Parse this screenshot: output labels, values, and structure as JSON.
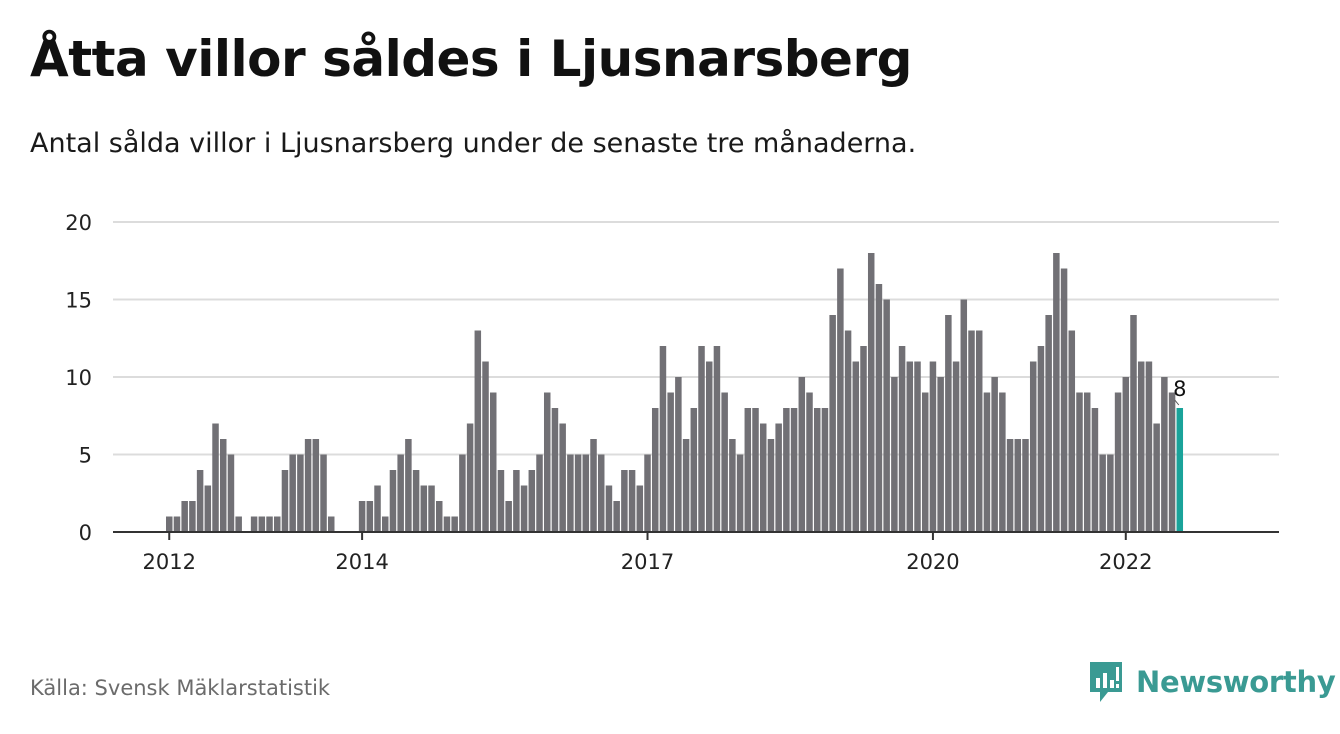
{
  "title": "Åtta villor såldes i Ljusnarsberg",
  "subtitle": "Antal sålda villor i Ljusnarsberg under de senaste tre månaderna.",
  "source": "Källa: Svensk Mäklarstatistik",
  "logo": {
    "text": "Newsworthy",
    "icon": "newsworthy-logo-icon"
  },
  "colors": {
    "bar": "#717075",
    "highlight": "#1aa39a",
    "grid": "#dcdcdc",
    "axis": "#333333",
    "brand": "#3a9a93"
  },
  "chart_data": {
    "type": "bar",
    "ylim": [
      0,
      20
    ],
    "y_ticks": [
      0,
      5,
      10,
      15,
      20
    ],
    "x_tick_labels": [
      {
        "label": "2012",
        "index": 0
      },
      {
        "label": "2014",
        "index": 25
      },
      {
        "label": "2017",
        "index": 62
      },
      {
        "label": "2020",
        "index": 99
      },
      {
        "label": "2022",
        "index": 124
      }
    ],
    "values": [
      1,
      1,
      2,
      2,
      4,
      3,
      7,
      6,
      5,
      1,
      0,
      1,
      1,
      1,
      1,
      4,
      5,
      5,
      6,
      6,
      5,
      1,
      0,
      0,
      0,
      2,
      2,
      3,
      1,
      4,
      5,
      6,
      4,
      3,
      3,
      2,
      1,
      1,
      5,
      7,
      13,
      11,
      9,
      4,
      2,
      4,
      3,
      4,
      5,
      9,
      8,
      7,
      5,
      5,
      5,
      6,
      5,
      3,
      2,
      4,
      4,
      3,
      5,
      8,
      12,
      9,
      10,
      6,
      8,
      12,
      11,
      12,
      9,
      6,
      5,
      8,
      8,
      7,
      6,
      7,
      8,
      8,
      10,
      9,
      8,
      8,
      14,
      17,
      13,
      11,
      12,
      18,
      16,
      15,
      10,
      12,
      11,
      11,
      9,
      11,
      10,
      14,
      11,
      15,
      13,
      13,
      9,
      10,
      9,
      6,
      6,
      6,
      11,
      12,
      14,
      18,
      17,
      13,
      9,
      9,
      8,
      5,
      5,
      9,
      10,
      14,
      11,
      11,
      7,
      10,
      9,
      8
    ],
    "highlight_last": true,
    "last_value_label": "8"
  }
}
